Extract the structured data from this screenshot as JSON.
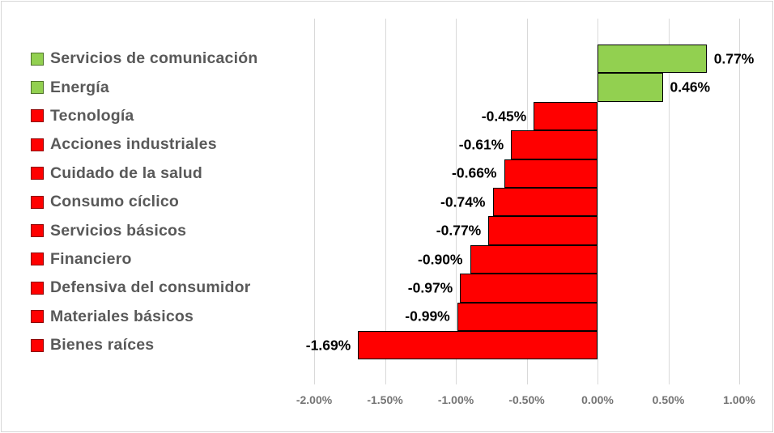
{
  "chart_data": {
    "type": "bar",
    "orientation": "horizontal",
    "title": "",
    "xlabel": "",
    "ylabel": "",
    "categories": [
      "Servicios de comunicación",
      "Energía",
      "Tecnología",
      "Acciones industriales",
      "Cuidado de la salud",
      "Consumo cíclico",
      "Servicios básicos",
      "Financiero",
      "Defensiva del consumidor",
      "Materiales básicos",
      "Bienes raíces"
    ],
    "values": [
      0.77,
      0.46,
      -0.45,
      -0.61,
      -0.66,
      -0.74,
      -0.77,
      -0.9,
      -0.97,
      -0.99,
      -1.69
    ],
    "value_labels": [
      "0.77%",
      "0.46%",
      "-0.45%",
      "-0.61%",
      "-0.66%",
      "-0.74%",
      "-0.77%",
      "-0.90%",
      "-0.97%",
      "-0.99%",
      "-1.69%"
    ],
    "x_ticks": {
      "values": [
        -2.0,
        -1.5,
        -1.0,
        -0.5,
        0.0,
        0.5,
        1.0
      ],
      "labels": [
        "-2.00%",
        "-1.50%",
        "-1.00%",
        "-0.50%",
        "0.00%",
        "0.50%",
        "1.00%"
      ]
    },
    "xlim": [
      -2.25,
      1.25
    ],
    "grid": "vertical",
    "legend_position": "none (color swatches inline with category labels)",
    "colors": {
      "positive": "#92D050",
      "negative": "#FF0000",
      "bar_border": "#000000",
      "gridline": "#D9D9D9",
      "category_text": "#595959",
      "value_text": "#000000",
      "axis_text": "#757575",
      "frame_border": "#D7D7D7",
      "background": "#FFFFFF"
    }
  }
}
